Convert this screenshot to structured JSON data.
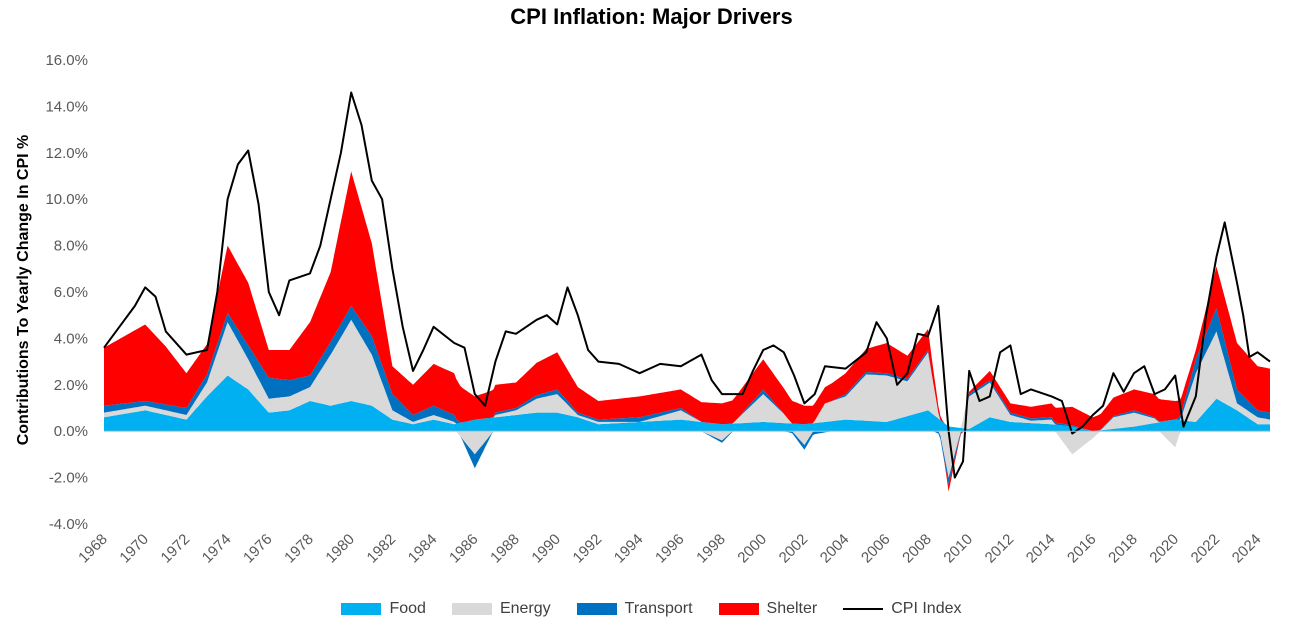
{
  "chart_data": {
    "type": "area",
    "title": "CPI Inflation: Major Drivers",
    "ylabel": "Contributions To Yearly Change In CPI %",
    "xlabel": "",
    "xlim": [
      1968,
      2024.6
    ],
    "ylim": [
      -4,
      16
    ],
    "y_ticks": [
      "-4.0%",
      "-2.0%",
      "0.0%",
      "2.0%",
      "4.0%",
      "6.0%",
      "8.0%",
      "10.0%",
      "12.0%",
      "14.0%",
      "16.0%"
    ],
    "x_ticks": [
      "1968",
      "1970",
      "1972",
      "1974",
      "1976",
      "1978",
      "1980",
      "1982",
      "1984",
      "1986",
      "1988",
      "1990",
      "1992",
      "1994",
      "1996",
      "1998",
      "2000",
      "2002",
      "2004",
      "2006",
      "2008",
      "2010",
      "2012",
      "2014",
      "2016",
      "2018",
      "2020",
      "2022",
      "2024"
    ],
    "stacked": true,
    "grid": false,
    "legend_position": "bottom",
    "series": [
      {
        "name": "Food",
        "kind": "area",
        "color": "#00b0f0",
        "points": [
          [
            1968,
            0.6
          ],
          [
            1970,
            0.9
          ],
          [
            1971,
            0.7
          ],
          [
            1972,
            0.5
          ],
          [
            1973,
            1.5
          ],
          [
            1974,
            2.4
          ],
          [
            1975,
            1.8
          ],
          [
            1976,
            0.8
          ],
          [
            1977,
            0.9
          ],
          [
            1978,
            1.3
          ],
          [
            1979,
            1.1
          ],
          [
            1980,
            1.3
          ],
          [
            1981,
            1.1
          ],
          [
            1982,
            0.5
          ],
          [
            1983,
            0.3
          ],
          [
            1984,
            0.5
          ],
          [
            1985,
            0.3
          ],
          [
            1986,
            0.5
          ],
          [
            1987,
            0.6
          ],
          [
            1988,
            0.7
          ],
          [
            1989,
            0.8
          ],
          [
            1990,
            0.8
          ],
          [
            1991,
            0.6
          ],
          [
            1992,
            0.3
          ],
          [
            1994,
            0.4
          ],
          [
            1996,
            0.5
          ],
          [
            1998,
            0.3
          ],
          [
            2000,
            0.4
          ],
          [
            2002,
            0.3
          ],
          [
            2004,
            0.5
          ],
          [
            2006,
            0.4
          ],
          [
            2008,
            0.9
          ],
          [
            2009,
            0.2
          ],
          [
            2010,
            0.1
          ],
          [
            2011,
            0.6
          ],
          [
            2012,
            0.4
          ],
          [
            2014,
            0.3
          ],
          [
            2015,
            0.2
          ],
          [
            2016,
            0.0
          ],
          [
            2017,
            0.1
          ],
          [
            2018,
            0.2
          ],
          [
            2020,
            0.5
          ],
          [
            2021,
            0.4
          ],
          [
            2022,
            1.4
          ],
          [
            2023,
            0.9
          ],
          [
            2024,
            0.3
          ],
          [
            2024.6,
            0.3
          ]
        ]
      },
      {
        "name": "Energy",
        "kind": "area",
        "color": "#d9d9d9",
        "points": [
          [
            1968,
            0.2
          ],
          [
            1970,
            0.2
          ],
          [
            1972,
            0.2
          ],
          [
            1973,
            0.6
          ],
          [
            1974,
            2.3
          ],
          [
            1975,
            1.3
          ],
          [
            1976,
            0.6
          ],
          [
            1977,
            0.6
          ],
          [
            1978,
            0.6
          ],
          [
            1979,
            2.2
          ],
          [
            1980,
            3.5
          ],
          [
            1981,
            2.2
          ],
          [
            1982,
            0.4
          ],
          [
            1983,
            0.1
          ],
          [
            1984,
            0.2
          ],
          [
            1985,
            0.1
          ],
          [
            1986,
            -1.0
          ],
          [
            1987,
            0.1
          ],
          [
            1988,
            0.2
          ],
          [
            1989,
            0.6
          ],
          [
            1990,
            0.8
          ],
          [
            1991,
            0.1
          ],
          [
            1992,
            0.1
          ],
          [
            1994,
            0.0
          ],
          [
            1996,
            0.4
          ],
          [
            1998,
            -0.4
          ],
          [
            2000,
            1.2
          ],
          [
            2001,
            0.4
          ],
          [
            2002,
            -0.6
          ],
          [
            2003,
            0.8
          ],
          [
            2004,
            1.0
          ],
          [
            2005,
            2.0
          ],
          [
            2006,
            2.0
          ],
          [
            2007,
            1.5
          ],
          [
            2008,
            2.5
          ],
          [
            2009,
            -2.0
          ],
          [
            2010,
            1.4
          ],
          [
            2011,
            1.5
          ],
          [
            2012,
            0.3
          ],
          [
            2013,
            0.1
          ],
          [
            2014,
            0.2
          ],
          [
            2015,
            -1.0
          ],
          [
            2016,
            -0.3
          ],
          [
            2017,
            0.5
          ],
          [
            2018,
            0.6
          ],
          [
            2019,
            0.2
          ],
          [
            2020,
            -0.7
          ],
          [
            2021,
            2.1
          ],
          [
            2022,
            2.9
          ],
          [
            2023,
            0.3
          ],
          [
            2024,
            0.3
          ],
          [
            2024.6,
            0.2
          ]
        ]
      },
      {
        "name": "Transport",
        "kind": "area",
        "color": "#0070c0",
        "points": [
          [
            1968,
            0.3
          ],
          [
            1970,
            0.2
          ],
          [
            1972,
            0.3
          ],
          [
            1974,
            0.4
          ],
          [
            1975,
            0.6
          ],
          [
            1976,
            0.9
          ],
          [
            1977,
            0.7
          ],
          [
            1978,
            0.5
          ],
          [
            1980,
            0.6
          ],
          [
            1981,
            0.8
          ],
          [
            1982,
            0.7
          ],
          [
            1983,
            0.3
          ],
          [
            1984,
            0.4
          ],
          [
            1985,
            0.3
          ],
          [
            1986,
            -0.6
          ],
          [
            1987,
            0.1
          ],
          [
            1988,
            0.1
          ],
          [
            1990,
            0.2
          ],
          [
            1991,
            0.1
          ],
          [
            1992,
            0.1
          ],
          [
            1994,
            0.2
          ],
          [
            1996,
            0.1
          ],
          [
            1998,
            -0.1
          ],
          [
            2000,
            0.2
          ],
          [
            2002,
            -0.2
          ],
          [
            2004,
            0.1
          ],
          [
            2006,
            0.1
          ],
          [
            2008,
            0.1
          ],
          [
            2009,
            -0.3
          ],
          [
            2010,
            0.1
          ],
          [
            2012,
            0.1
          ],
          [
            2014,
            0.1
          ],
          [
            2016,
            0.0
          ],
          [
            2018,
            0.1
          ],
          [
            2020,
            0.0
          ],
          [
            2021,
            0.6
          ],
          [
            2022,
            1.0
          ],
          [
            2023,
            0.6
          ],
          [
            2024,
            0.3
          ],
          [
            2024.6,
            0.3
          ]
        ]
      },
      {
        "name": "Shelter",
        "kind": "area",
        "color": "#ff0000",
        "points": [
          [
            1968,
            2.5
          ],
          [
            1970,
            3.3
          ],
          [
            1971,
            2.5
          ],
          [
            1972,
            1.5
          ],
          [
            1973,
            1.3
          ],
          [
            1974,
            2.9
          ],
          [
            1975,
            2.7
          ],
          [
            1976,
            1.2
          ],
          [
            1977,
            1.3
          ],
          [
            1978,
            2.3
          ],
          [
            1979,
            3.0
          ],
          [
            1980,
            5.8
          ],
          [
            1981,
            4.0
          ],
          [
            1982,
            1.2
          ],
          [
            1983,
            1.3
          ],
          [
            1984,
            1.8
          ],
          [
            1985,
            1.8
          ],
          [
            1986,
            1.0
          ],
          [
            1987,
            1.2
          ],
          [
            1988,
            1.1
          ],
          [
            1989,
            1.4
          ],
          [
            1990,
            1.6
          ],
          [
            1991,
            1.1
          ],
          [
            1992,
            0.8
          ],
          [
            1994,
            0.9
          ],
          [
            1996,
            0.8
          ],
          [
            1998,
            0.9
          ],
          [
            2000,
            1.3
          ],
          [
            2001,
            1.1
          ],
          [
            2002,
            0.8
          ],
          [
            2003,
            0.7
          ],
          [
            2004,
            0.9
          ],
          [
            2005,
            1.0
          ],
          [
            2006,
            1.3
          ],
          [
            2007,
            1.0
          ],
          [
            2008,
            0.9
          ],
          [
            2009,
            -0.3
          ],
          [
            2010,
            0.1
          ],
          [
            2011,
            0.4
          ],
          [
            2012,
            0.4
          ],
          [
            2013,
            0.5
          ],
          [
            2014,
            0.6
          ],
          [
            2015,
            0.8
          ],
          [
            2016,
            0.6
          ],
          [
            2017,
            0.8
          ],
          [
            2018,
            0.9
          ],
          [
            2019,
            1.0
          ],
          [
            2020,
            0.8
          ],
          [
            2021,
            0.4
          ],
          [
            2022,
            1.8
          ],
          [
            2023,
            2.0
          ],
          [
            2024,
            1.9
          ],
          [
            2024.6,
            1.9
          ]
        ]
      },
      {
        "name": "CPI Index",
        "kind": "line",
        "color": "#000000",
        "points": [
          [
            1968,
            3.6
          ],
          [
            1969,
            4.8
          ],
          [
            1969.5,
            5.4
          ],
          [
            1970,
            6.2
          ],
          [
            1970.5,
            5.8
          ],
          [
            1971,
            4.3
          ],
          [
            1972,
            3.3
          ],
          [
            1973,
            3.5
          ],
          [
            1973.5,
            6.0
          ],
          [
            1974,
            10.0
          ],
          [
            1974.5,
            11.5
          ],
          [
            1975,
            12.1
          ],
          [
            1975.5,
            9.8
          ],
          [
            1976,
            6.0
          ],
          [
            1976.5,
            5.0
          ],
          [
            1977,
            6.5
          ],
          [
            1978,
            6.8
          ],
          [
            1978.5,
            8.0
          ],
          [
            1979,
            10.0
          ],
          [
            1979.5,
            12.0
          ],
          [
            1980,
            14.6
          ],
          [
            1980.5,
            13.2
          ],
          [
            1981,
            10.8
          ],
          [
            1981.5,
            10.0
          ],
          [
            1982,
            7.0
          ],
          [
            1982.5,
            4.5
          ],
          [
            1983,
            2.6
          ],
          [
            1983.5,
            3.5
          ],
          [
            1984,
            4.5
          ],
          [
            1985,
            3.8
          ],
          [
            1985.5,
            3.6
          ],
          [
            1986,
            1.6
          ],
          [
            1986.5,
            1.1
          ],
          [
            1987,
            3.0
          ],
          [
            1987.5,
            4.3
          ],
          [
            1988,
            4.2
          ],
          [
            1989,
            4.8
          ],
          [
            1989.5,
            5.0
          ],
          [
            1990,
            4.6
          ],
          [
            1990.5,
            6.2
          ],
          [
            1991,
            5.0
          ],
          [
            1991.5,
            3.5
          ],
          [
            1992,
            3.0
          ],
          [
            1993,
            2.9
          ],
          [
            1994,
            2.5
          ],
          [
            1995,
            2.9
          ],
          [
            1996,
            2.8
          ],
          [
            1997,
            3.3
          ],
          [
            1997.5,
            2.2
          ],
          [
            1998,
            1.6
          ],
          [
            1999,
            1.6
          ],
          [
            1999.5,
            2.6
          ],
          [
            2000,
            3.5
          ],
          [
            2000.5,
            3.7
          ],
          [
            2001,
            3.4
          ],
          [
            2001.5,
            2.4
          ],
          [
            2002,
            1.2
          ],
          [
            2002.5,
            1.6
          ],
          [
            2003,
            2.8
          ],
          [
            2004,
            2.7
          ],
          [
            2005,
            3.4
          ],
          [
            2005.5,
            4.7
          ],
          [
            2006,
            4.0
          ],
          [
            2006.5,
            2.0
          ],
          [
            2007,
            2.5
          ],
          [
            2007.5,
            4.2
          ],
          [
            2008,
            4.1
          ],
          [
            2008.5,
            5.4
          ],
          [
            2009,
            0.0
          ],
          [
            2009.3,
            -2.0
          ],
          [
            2009.7,
            -1.3
          ],
          [
            2010,
            2.6
          ],
          [
            2010.5,
            1.3
          ],
          [
            2011,
            1.5
          ],
          [
            2011.5,
            3.4
          ],
          [
            2012,
            3.7
          ],
          [
            2012.5,
            1.6
          ],
          [
            2013,
            1.8
          ],
          [
            2014,
            1.5
          ],
          [
            2014.5,
            1.3
          ],
          [
            2015,
            -0.1
          ],
          [
            2015.5,
            0.2
          ],
          [
            2016,
            0.7
          ],
          [
            2016.5,
            1.1
          ],
          [
            2017,
            2.5
          ],
          [
            2017.5,
            1.7
          ],
          [
            2018,
            2.5
          ],
          [
            2018.5,
            2.8
          ],
          [
            2019,
            1.6
          ],
          [
            2019.5,
            1.8
          ],
          [
            2020,
            2.4
          ],
          [
            2020.4,
            0.2
          ],
          [
            2021,
            1.5
          ],
          [
            2021.5,
            5.0
          ],
          [
            2022,
            7.5
          ],
          [
            2022.4,
            9.0
          ],
          [
            2023,
            6.4
          ],
          [
            2023.3,
            5.0
          ],
          [
            2023.6,
            3.2
          ],
          [
            2024,
            3.4
          ],
          [
            2024.6,
            3.0
          ]
        ]
      }
    ]
  }
}
